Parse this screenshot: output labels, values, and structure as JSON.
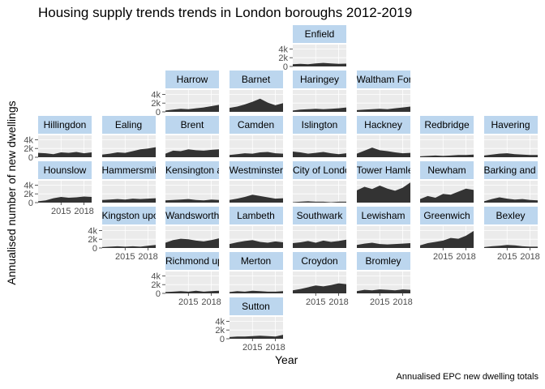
{
  "title": "Housing supply trends trends in London boroughs 2012-2019",
  "caption": "Annualised EPC new dwelling totals",
  "xlabel": "Year",
  "ylabel": "Annualised number of new dwellings",
  "colors": {
    "strip": "#bcd6ee",
    "panel": "#ebebeb",
    "area": "#333333",
    "grid": "#ffffff"
  },
  "chart_data": {
    "type": "area",
    "layout": "geofacet",
    "title": "Housing supply trends trends in London boroughs 2012-2019",
    "xlabel": "Year",
    "ylabel": "Annualised number of new dwellings",
    "x": [
      2012,
      2013,
      2014,
      2015,
      2016,
      2017,
      2018,
      2019
    ],
    "x_ticks": [
      2015,
      2018
    ],
    "y_ticks": [
      0,
      2000,
      4000
    ],
    "y_tick_labels": [
      "0",
      "2k",
      "4k"
    ],
    "ylim": [
      0,
      5000
    ],
    "facets": [
      {
        "name": "Enfield",
        "row": 0,
        "col": 4,
        "values": [
          500,
          600,
          500,
          700,
          800,
          700,
          600,
          650
        ]
      },
      {
        "name": "Harrow",
        "row": 1,
        "col": 2,
        "values": [
          300,
          500,
          700,
          600,
          800,
          1000,
          1300,
          1600
        ]
      },
      {
        "name": "Barnet",
        "row": 1,
        "col": 3,
        "values": [
          900,
          1200,
          1700,
          2300,
          3000,
          2100,
          1500,
          2000
        ]
      },
      {
        "name": "Haringey",
        "row": 1,
        "col": 4,
        "values": [
          300,
          500,
          600,
          700,
          600,
          700,
          800,
          1000
        ]
      },
      {
        "name": "Waltham Forest",
        "row": 1,
        "col": 5,
        "values": [
          400,
          500,
          600,
          700,
          600,
          800,
          1000,
          1200
        ]
      },
      {
        "name": "Hillingdon",
        "row": 2,
        "col": 0,
        "values": [
          1000,
          900,
          700,
          1100,
          1000,
          1200,
          900,
          1100
        ]
      },
      {
        "name": "Ealing",
        "row": 2,
        "col": 1,
        "values": [
          600,
          800,
          1100,
          1000,
          1400,
          1800,
          2000,
          2300
        ]
      },
      {
        "name": "Brent",
        "row": 2,
        "col": 2,
        "values": [
          800,
          1500,
          1400,
          1800,
          1600,
          1500,
          1700,
          1800
        ]
      },
      {
        "name": "Camden",
        "row": 2,
        "col": 3,
        "values": [
          500,
          700,
          900,
          800,
          1100,
          1200,
          900,
          800
        ]
      },
      {
        "name": "Islington",
        "row": 2,
        "col": 4,
        "values": [
          1300,
          1100,
          800,
          1000,
          1200,
          900,
          700,
          900
        ]
      },
      {
        "name": "Hackney",
        "row": 2,
        "col": 5,
        "values": [
          800,
          1500,
          2200,
          1600,
          1400,
          1100,
          900,
          1000
        ]
      },
      {
        "name": "Redbridge",
        "row": 2,
        "col": 6,
        "values": [
          200,
          300,
          400,
          300,
          400,
          500,
          500,
          600
        ]
      },
      {
        "name": "Havering",
        "row": 2,
        "col": 7,
        "values": [
          400,
          600,
          800,
          900,
          700,
          600,
          500,
          500
        ]
      },
      {
        "name": "Hounslow",
        "row": 3,
        "col": 0,
        "values": [
          300,
          500,
          1000,
          1300,
          1100,
          1200,
          1400,
          1300
        ]
      },
      {
        "name": "Hammersmith and Fulham",
        "row": 3,
        "col": 1,
        "values": [
          600,
          700,
          800,
          700,
          900,
          800,
          900,
          1000
        ]
      },
      {
        "name": "Kensington and Chelsea",
        "row": 3,
        "col": 2,
        "values": [
          500,
          600,
          700,
          800,
          600,
          500,
          700,
          600
        ]
      },
      {
        "name": "Westminster",
        "row": 3,
        "col": 3,
        "values": [
          600,
          900,
          1300,
          1800,
          1500,
          1200,
          900,
          1000
        ]
      },
      {
        "name": "City of London",
        "row": 3,
        "col": 4,
        "values": [
          100,
          200,
          300,
          200,
          200,
          100,
          200,
          200
        ]
      },
      {
        "name": "Tower Hamlets",
        "row": 3,
        "col": 5,
        "values": [
          2800,
          3600,
          3100,
          3900,
          3200,
          2700,
          3400,
          4600
        ]
      },
      {
        "name": "Newham",
        "row": 3,
        "col": 6,
        "values": [
          800,
          1500,
          1100,
          2000,
          1800,
          2500,
          3200,
          2900
        ]
      },
      {
        "name": "Barking and Dagenham",
        "row": 3,
        "col": 7,
        "values": [
          300,
          800,
          1200,
          900,
          700,
          800,
          600,
          500
        ]
      },
      {
        "name": "Kingston upon Thames",
        "row": 4,
        "col": 1,
        "values": [
          200,
          300,
          400,
          300,
          400,
          300,
          500,
          700
        ]
      },
      {
        "name": "Wandsworth",
        "row": 4,
        "col": 2,
        "values": [
          1200,
          1800,
          2100,
          2000,
          1700,
          1500,
          1800,
          2200
        ]
      },
      {
        "name": "Lambeth",
        "row": 4,
        "col": 3,
        "values": [
          900,
          1300,
          1600,
          1800,
          1400,
          1200,
          1500,
          1300
        ]
      },
      {
        "name": "Southwark",
        "row": 4,
        "col": 4,
        "values": [
          1100,
          1300,
          1600,
          1200,
          1700,
          1400,
          1600,
          1900
        ]
      },
      {
        "name": "Lewisham",
        "row": 4,
        "col": 5,
        "values": [
          700,
          1000,
          1200,
          900,
          800,
          900,
          1000,
          1100
        ]
      },
      {
        "name": "Greenwich",
        "row": 4,
        "col": 6,
        "values": [
          600,
          1100,
          1400,
          1700,
          2300,
          2100,
          2800,
          3900
        ]
      },
      {
        "name": "Bexley",
        "row": 4,
        "col": 7,
        "values": [
          200,
          400,
          500,
          700,
          600,
          400,
          300,
          300
        ]
      },
      {
        "name": "Richmond upon Thames",
        "row": 5,
        "col": 2,
        "values": [
          300,
          400,
          500,
          400,
          600,
          400,
          500,
          600
        ]
      },
      {
        "name": "Merton",
        "row": 5,
        "col": 3,
        "values": [
          300,
          500,
          400,
          600,
          500,
          400,
          400,
          500
        ]
      },
      {
        "name": "Croydon",
        "row": 5,
        "col": 4,
        "values": [
          700,
          1000,
          1400,
          1800,
          1600,
          1900,
          2300,
          2100
        ]
      },
      {
        "name": "Bromley",
        "row": 5,
        "col": 5,
        "values": [
          500,
          800,
          700,
          900,
          800,
          700,
          900,
          800
        ]
      },
      {
        "name": "Sutton",
        "row": 6,
        "col": 3,
        "values": [
          400,
          500,
          500,
          600,
          700,
          600,
          500,
          900
        ]
      }
    ]
  }
}
